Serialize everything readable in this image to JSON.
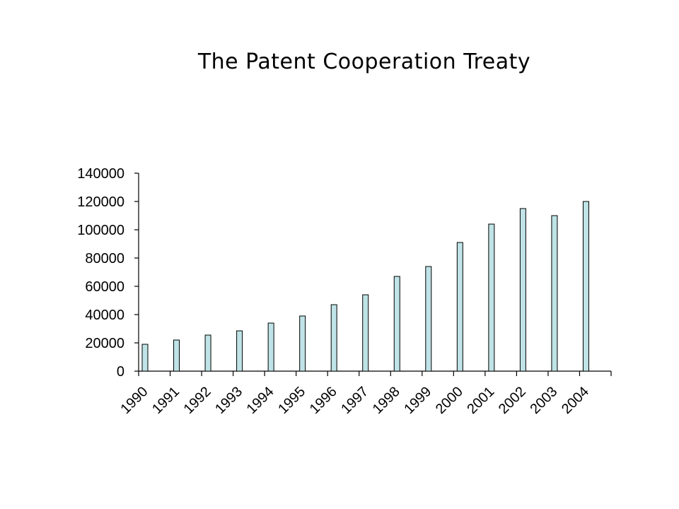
{
  "title": "The Patent Cooperation Treaty",
  "colors": {
    "bar_fill": "#bfe3e6",
    "bar_stroke": "#000000",
    "axis": "#000000"
  },
  "chart_data": {
    "type": "bar",
    "title": "The Patent Cooperation Treaty",
    "xlabel": "",
    "ylabel": "",
    "categories": [
      "1990",
      "1991",
      "1992",
      "1993",
      "1994",
      "1995",
      "1996",
      "1997",
      "1998",
      "1999",
      "2000",
      "2001",
      "2002",
      "2003",
      "2004"
    ],
    "values": [
      19000,
      22000,
      25500,
      28500,
      34000,
      39000,
      47000,
      54000,
      67000,
      74000,
      91000,
      104000,
      115000,
      110000,
      120000
    ],
    "ylim": [
      0,
      140000
    ],
    "yticks": [
      "0",
      "20000",
      "40000",
      "60000",
      "80000",
      "100000",
      "120000",
      "140000"
    ],
    "grid": false,
    "legend": "none"
  }
}
